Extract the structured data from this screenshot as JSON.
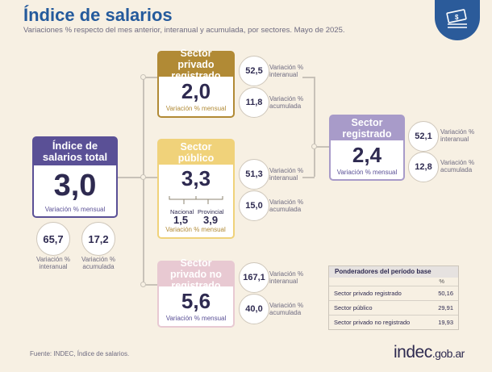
{
  "title": "Índice de salarios",
  "subtitle": "Variaciones % respecto del mes anterior, interanual y acumulada, por sectores. Mayo de 2025.",
  "icons": {
    "logo": "money-stack-icon"
  },
  "colors": {
    "title_blue": "#245a9c",
    "indigo": "#5a5096",
    "gold": "#b18a35",
    "gold_light": "#f0d27a",
    "pink": "#e8c9d2",
    "lavender": "#a89bc9"
  },
  "total": {
    "title": "Índice de salarios total",
    "value": "3,0",
    "sublabel": "Variación % mensual",
    "interanual": {
      "value": "65,7",
      "label": "Variación % interanual"
    },
    "acumulada": {
      "value": "17,2",
      "label": "Variación % acumulada"
    }
  },
  "privado": {
    "title": "Sector privado registrado",
    "value": "2,0",
    "sublabel": "Variación % mensual",
    "interanual": {
      "value": "52,5",
      "label": "Variación % interanual"
    },
    "acumulada": {
      "value": "11,8",
      "label": "Variación % acumulada"
    }
  },
  "publico": {
    "title": "Sector público",
    "value": "3,3",
    "sublabel": "Variación % mensual",
    "nacional": {
      "label": "Nacional",
      "value": "1,5"
    },
    "provincial": {
      "label": "Provincial",
      "value": "3,9"
    },
    "interanual": {
      "value": "51,3",
      "label": "Variación % interanual"
    },
    "acumulada": {
      "value": "15,0",
      "label": "Variación % acumulada"
    }
  },
  "no_registrado": {
    "title": "Sector privado no registrado",
    "value": "5,6",
    "sublabel": "Variación % mensual",
    "interanual": {
      "value": "167,1",
      "label": "Variación % interanual"
    },
    "acumulada": {
      "value": "40,0",
      "label": "Variación % acumulada"
    }
  },
  "registrado": {
    "title": "Sector registrado",
    "value": "2,4",
    "sublabel": "Variación % mensual",
    "interanual": {
      "value": "52,1",
      "label": "Variación % interanual"
    },
    "acumulada": {
      "value": "12,8",
      "label": "Variación % acumulada"
    }
  },
  "ponderadores": {
    "title": "Ponderadores del período base",
    "unit": "%",
    "rows": [
      {
        "label": "Sector privado registrado",
        "value": "50,16"
      },
      {
        "label": "Sector público",
        "value": "29,91"
      },
      {
        "label": "Sector privado no registrado",
        "value": "19,93"
      }
    ]
  },
  "footer": "Fuente: INDEC, Índice de salarios.",
  "brand": {
    "name": "indec",
    "domain": ".gob.ar"
  }
}
